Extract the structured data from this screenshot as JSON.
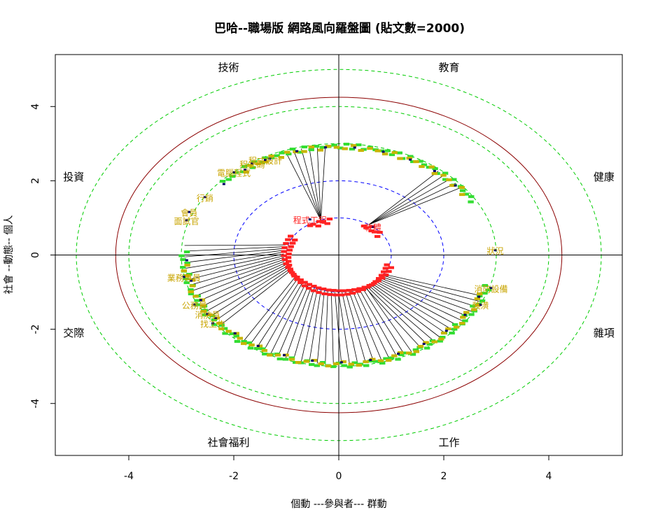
{
  "chart_data": {
    "type": "scatter",
    "title": "巴哈--職場版 網路風向羅盤圖 (貼文數=2000)",
    "xlabel": "個動 ---參與者--- 群動",
    "ylabel": "社會 --動態-- 個人",
    "xlim": [
      -5.4,
      5.4
    ],
    "ylim": [
      -5.4,
      5.4
    ],
    "x_ticks": [
      "-4",
      "-2",
      "0",
      "2",
      "4"
    ],
    "y_ticks": [
      "-4",
      "-2",
      "0",
      "2",
      "4"
    ],
    "grid": false,
    "circles": [
      {
        "radius": 1.0,
        "style": "dashed",
        "color": "#0000ff"
      },
      {
        "radius": 2.0,
        "style": "dashed",
        "color": "#0000ff"
      },
      {
        "radius": 4.25,
        "style": "solid",
        "color": "#8b0000"
      },
      {
        "radius": 3.0,
        "style": "dashed",
        "color": "#00cc00"
      },
      {
        "radius": 4.0,
        "style": "dashed",
        "color": "#00cc00"
      },
      {
        "radius": 5.0,
        "style": "dashed",
        "color": "#00cc00"
      }
    ],
    "sectors": [
      {
        "label": "技術",
        "x": -2.1,
        "y": 5.05
      },
      {
        "label": "教育",
        "x": 2.1,
        "y": 5.05
      },
      {
        "label": "投資",
        "x": -5.05,
        "y": 2.1
      },
      {
        "label": "健康",
        "x": 5.05,
        "y": 2.1
      },
      {
        "label": "交際",
        "x": -5.05,
        "y": -2.1
      },
      {
        "label": "雜項",
        "x": 5.05,
        "y": -2.1
      },
      {
        "label": "社會福利",
        "x": -2.1,
        "y": -5.05
      },
      {
        "label": "工作",
        "x": 2.1,
        "y": -5.05
      }
    ],
    "labels": [
      {
        "text": "程式設計",
        "x": -1.4,
        "y": 2.55
      },
      {
        "text": "程式碼",
        "x": -1.65,
        "y": 2.45
      },
      {
        "text": "電腦程式",
        "x": -2.0,
        "y": 2.22
      },
      {
        "text": "行銷",
        "x": -2.55,
        "y": 1.55
      },
      {
        "text": "會員",
        "x": -2.85,
        "y": 1.15
      },
      {
        "text": "面試官",
        "x": -2.9,
        "y": 0.92
      },
      {
        "text": "狀況",
        "x": 2.98,
        "y": 0.12
      },
      {
        "text": "消防設備",
        "x": 2.9,
        "y": -0.9
      },
      {
        "text": "裝潢",
        "x": 2.7,
        "y": -1.35
      },
      {
        "text": "業務專員",
        "x": -2.95,
        "y": -0.6
      },
      {
        "text": "公務員",
        "x": -2.75,
        "y": -1.35
      },
      {
        "text": "消防員",
        "x": -2.5,
        "y": -1.6
      },
      {
        "text": "找工作",
        "x": -2.4,
        "y": -1.85
      },
      {
        "text": "程式工程",
        "x": -0.55,
        "y": 0.95
      },
      {
        "text": "軟體",
        "x": 0.65,
        "y": 0.75
      }
    ]
  }
}
